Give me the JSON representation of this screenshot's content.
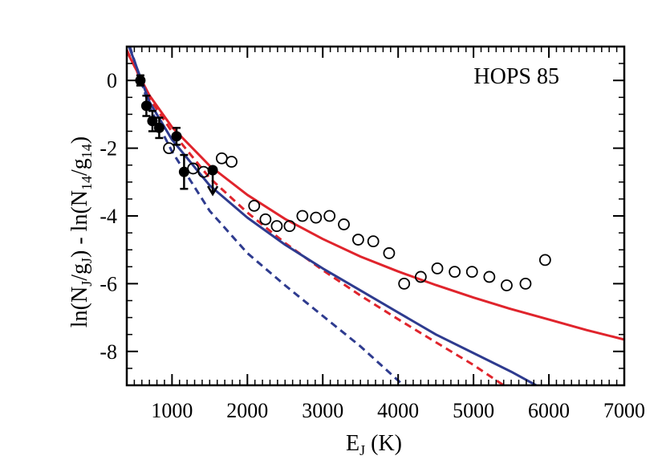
{
  "chart_data": {
    "type": "scatter",
    "title": "HOPS 85",
    "xlabel": {
      "base": "E",
      "sub": "J",
      "rest": " (K)"
    },
    "ylabel": {
      "p1": "ln(N",
      "s1": "J",
      "p2": "/g",
      "s2": "J",
      "p3": ") - ln(N",
      "s3": "14",
      "p4": "/g",
      "s4": "14",
      "p5": ")"
    },
    "xlim": [
      400,
      7000
    ],
    "ylim": [
      -9,
      1
    ],
    "xticks": [
      1000,
      2000,
      3000,
      4000,
      5000,
      6000,
      7000
    ],
    "xtick_labels": [
      "1000",
      "2000",
      "3000",
      "4000",
      "5000",
      "6000",
      "7000"
    ],
    "yticks": [
      0,
      -2,
      -4,
      -6,
      -8
    ],
    "ytick_labels": [
      "0",
      "-2",
      "-4",
      "-6",
      "-8"
    ],
    "series": [
      {
        "marker": "filled-circle",
        "color": "#000000",
        "points": [
          {
            "x": 580,
            "y": 0.0,
            "err": 0.15
          },
          {
            "x": 660,
            "y": -0.75,
            "err": 0.3
          },
          {
            "x": 740,
            "y": -1.2,
            "err": 0.3
          },
          {
            "x": 830,
            "y": -1.4,
            "err": 0.3
          },
          {
            "x": 1060,
            "y": -1.65,
            "err": 0.25
          },
          {
            "x": 1160,
            "y": -2.7,
            "err": 0.5
          }
        ]
      },
      {
        "marker": "upper-limit",
        "color": "#000000",
        "points": [
          {
            "x": 1540,
            "y": -2.65
          }
        ]
      },
      {
        "marker": "open-circle",
        "color": "#000000",
        "points": [
          {
            "x": 960,
            "y": -2.0
          },
          {
            "x": 1280,
            "y": -2.6
          },
          {
            "x": 1420,
            "y": -2.7
          },
          {
            "x": 1660,
            "y": -2.3
          },
          {
            "x": 1790,
            "y": -2.4
          },
          {
            "x": 2090,
            "y": -3.7
          },
          {
            "x": 2240,
            "y": -4.1
          },
          {
            "x": 2390,
            "y": -4.3
          },
          {
            "x": 2560,
            "y": -4.3
          },
          {
            "x": 2730,
            "y": -4.0
          },
          {
            "x": 2910,
            "y": -4.05
          },
          {
            "x": 3090,
            "y": -4.0
          },
          {
            "x": 3280,
            "y": -4.25
          },
          {
            "x": 3470,
            "y": -4.7
          },
          {
            "x": 3670,
            "y": -4.75
          },
          {
            "x": 3880,
            "y": -5.1
          },
          {
            "x": 4080,
            "y": -6.0
          },
          {
            "x": 4300,
            "y": -5.8
          },
          {
            "x": 4520,
            "y": -5.55
          },
          {
            "x": 4750,
            "y": -5.65
          },
          {
            "x": 4980,
            "y": -5.65
          },
          {
            "x": 5210,
            "y": -5.8
          },
          {
            "x": 5440,
            "y": -6.05
          },
          {
            "x": 5690,
            "y": -6.0
          },
          {
            "x": 5950,
            "y": -5.3
          }
        ]
      },
      {
        "marker": "line",
        "style": "solid",
        "color": "#e0242c",
        "points": [
          [
            400,
            0.86
          ],
          [
            700,
            -0.44
          ],
          [
            1000,
            -1.38
          ],
          [
            1500,
            -2.52
          ],
          [
            2000,
            -3.38
          ],
          [
            2500,
            -4.09
          ],
          [
            3000,
            -4.68
          ],
          [
            3500,
            -5.2
          ],
          [
            4000,
            -5.64
          ],
          [
            4500,
            -6.04
          ],
          [
            5000,
            -6.41
          ],
          [
            5500,
            -6.75
          ],
          [
            6000,
            -7.06
          ],
          [
            6500,
            -7.37
          ],
          [
            7000,
            -7.65
          ]
        ]
      },
      {
        "marker": "line",
        "style": "dashed",
        "color": "#e0242c",
        "points": [
          [
            400,
            0.9
          ],
          [
            700,
            -0.52
          ],
          [
            1000,
            -1.52
          ],
          [
            1500,
            -2.88
          ],
          [
            2000,
            -3.9
          ],
          [
            2500,
            -4.8
          ],
          [
            3000,
            -5.6
          ],
          [
            3500,
            -6.35
          ],
          [
            4000,
            -7.05
          ],
          [
            4500,
            -7.73
          ],
          [
            5000,
            -8.4
          ],
          [
            5400,
            -9.0
          ]
        ]
      },
      {
        "marker": "line",
        "style": "solid",
        "color": "#2e3b8f",
        "points": [
          [
            430,
            1.0
          ],
          [
            700,
            -0.63
          ],
          [
            1000,
            -1.75
          ],
          [
            1500,
            -3.1
          ],
          [
            2000,
            -4.05
          ],
          [
            2500,
            -4.85
          ],
          [
            3000,
            -5.55
          ],
          [
            3500,
            -6.2
          ],
          [
            4000,
            -6.85
          ],
          [
            4500,
            -7.5
          ],
          [
            5000,
            -8.05
          ],
          [
            5500,
            -8.6
          ],
          [
            5830,
            -9.0
          ]
        ]
      },
      {
        "marker": "line",
        "style": "dashed",
        "color": "#2e3b8f",
        "points": [
          [
            440,
            1.0
          ],
          [
            700,
            -0.78
          ],
          [
            1000,
            -2.1
          ],
          [
            1500,
            -3.85
          ],
          [
            2000,
            -5.1
          ],
          [
            2500,
            -6.05
          ],
          [
            3000,
            -6.95
          ],
          [
            3500,
            -7.85
          ],
          [
            4070,
            -9.0
          ]
        ]
      }
    ]
  }
}
